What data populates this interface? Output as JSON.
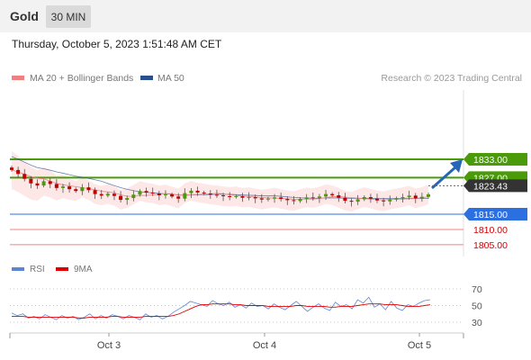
{
  "header": {
    "title": "Gold",
    "timeframe": "30 MIN",
    "timestamp": "Thursday, October 5, 2023 1:51:48 AM CET"
  },
  "legend": {
    "items": [
      {
        "label": "MA 20 + Bollinger Bands",
        "color": "#f08080"
      },
      {
        "label": "MA 50",
        "color": "#2a4f8f"
      }
    ],
    "copyright": "Research © 2023 Trading Central"
  },
  "chart_data": [
    {
      "type": "candlestick",
      "title": "Gold",
      "levels": [
        {
          "value": 1833.0,
          "label": "1833.00",
          "color": "#4a9a0a",
          "label_bg": "#4a9a0a",
          "label_fg": "#ffffff"
        },
        {
          "value": 1827.0,
          "label": "1827.00",
          "color": "#4a9a0a",
          "label_bg": "#4a9a0a",
          "label_fg": "#ffffff"
        },
        {
          "value": 1815.0,
          "label": "1815.00",
          "color": "#2c6fe0",
          "label_bg": "#2c6fe0",
          "label_fg": "#ffffff"
        },
        {
          "value": 1810.0,
          "label": "1810.00",
          "color": "#f08080",
          "label_bg": "none",
          "label_fg": "#d00000"
        },
        {
          "value": 1805.0,
          "label": "1805.00",
          "color": "#f08080",
          "label_bg": "none",
          "label_fg": "#d00000"
        }
      ],
      "last_price": {
        "value": 1823.43,
        "label": "1823.43"
      },
      "x_tick_labels": [
        "Oct 3",
        "Oct 4",
        "Oct 5"
      ],
      "price_series": [
        1829.5,
        1828.2,
        1826.6,
        1825.1,
        1824.4,
        1825.8,
        1824.9,
        1823.6,
        1824.1,
        1823.2,
        1822.6,
        1823.8,
        1822.9,
        1821.6,
        1821.1,
        1821.7,
        1821.0,
        1819.7,
        1820.3,
        1821.4,
        1822.6,
        1822.1,
        1821.8,
        1821.2,
        1821.5,
        1820.8,
        1820.1,
        1821.9,
        1822.7,
        1822.1,
        1821.8,
        1821.4,
        1821.2,
        1820.9,
        1820.7,
        1820.9,
        1820.4,
        1820.6,
        1820.2,
        1819.8,
        1820.1,
        1820.5,
        1820.0,
        1819.6,
        1819.3,
        1820.0,
        1820.5,
        1820.3,
        1820.8,
        1821.6,
        1821.2,
        1820.4,
        1819.4,
        1819.1,
        1819.9,
        1820.6,
        1820.1,
        1819.5,
        1819.2,
        1819.8,
        1820.2,
        1820.6,
        1821.1,
        1820.2,
        1820.7,
        1821.5
      ]
    },
    {
      "type": "line",
      "title": "RSI",
      "legend": [
        {
          "label": "RSI",
          "color": "#5b86d8"
        },
        {
          "label": "9MA",
          "color": "#e00000"
        }
      ],
      "y_ticks": [
        70,
        50,
        30
      ],
      "ylim": [
        20,
        80
      ],
      "rsi": [
        41,
        38,
        40,
        35,
        37,
        34,
        39,
        36,
        33,
        38,
        35,
        37,
        33,
        36,
        40,
        34,
        38,
        35,
        39,
        37,
        34,
        38,
        36,
        33,
        40,
        36,
        38,
        34,
        37,
        42,
        46,
        50,
        55,
        53,
        51,
        49,
        56,
        52,
        50,
        54,
        48,
        51,
        47,
        53,
        49,
        50,
        46,
        52,
        48,
        45,
        50,
        55,
        49,
        43,
        48,
        52,
        47,
        44,
        54,
        49,
        51,
        46,
        57,
        53,
        60,
        48,
        52,
        45,
        55,
        47,
        44,
        51,
        49,
        53,
        56,
        57
      ],
      "ma9": [
        37,
        37,
        37,
        36,
        36,
        36,
        36,
        36,
        36,
        36,
        36,
        36,
        35,
        35,
        36,
        36,
        36,
        36,
        37,
        37,
        36,
        36,
        36,
        36,
        37,
        37,
        37,
        37,
        37,
        38,
        40,
        43,
        46,
        49,
        51,
        51,
        52,
        52,
        52,
        52,
        51,
        51,
        50,
        50,
        50,
        50,
        49,
        49,
        49,
        49,
        49,
        50,
        50,
        49,
        49,
        49,
        49,
        48,
        48,
        49,
        49,
        49,
        50,
        51,
        52,
        52,
        52,
        51,
        51,
        51,
        50,
        49,
        49,
        49,
        50,
        51
      ]
    }
  ]
}
